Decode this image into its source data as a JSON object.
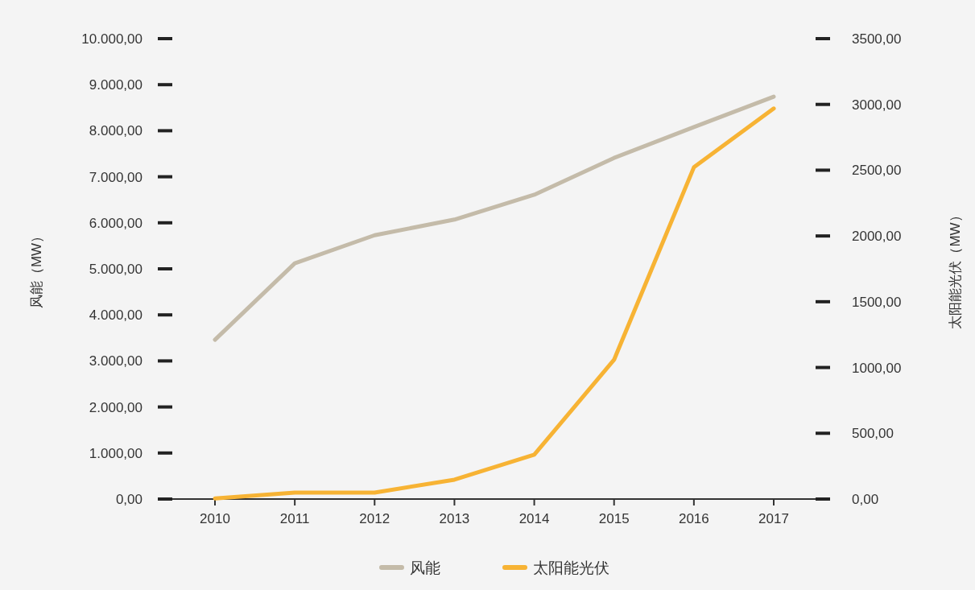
{
  "chart_data": {
    "type": "line",
    "categories": [
      "2010",
      "2011",
      "2012",
      "2013",
      "2014",
      "2015",
      "2016",
      "2017"
    ],
    "series": [
      {
        "name": "风能",
        "color": "#c4bba9",
        "values": [
          3460,
          5120,
          5730,
          6070,
          6610,
          7410,
          8080,
          8740
        ]
      },
      {
        "name": "太阳能光伏",
        "color": "#f7b334",
        "axis": "y2",
        "values": [
          5,
          49,
          49,
          147,
          337,
          1059,
          2522,
          2969
        ]
      }
    ],
    "ylabel": "风能（MW）",
    "y2label": "太阳能光伏（MW）",
    "ylim": [
      0,
      10000
    ],
    "yticks": [
      {
        "value": 0,
        "label": "0,00"
      },
      {
        "value": 1000,
        "label": "1.000,00"
      },
      {
        "value": 2000,
        "label": "2.000,00"
      },
      {
        "value": 3000,
        "label": "3.000,00"
      },
      {
        "value": 4000,
        "label": "4.000,00"
      },
      {
        "value": 5000,
        "label": "5.000,00"
      },
      {
        "value": 6000,
        "label": "6.000,00"
      },
      {
        "value": 7000,
        "label": "7.000,00"
      },
      {
        "value": 8000,
        "label": "8.000,00"
      },
      {
        "value": 9000,
        "label": "9.000,00"
      },
      {
        "value": 10000,
        "label": "10.000,00"
      }
    ],
    "y2lim": [
      0,
      3500
    ],
    "y2ticks": [
      {
        "value": 0,
        "label": "0,00"
      },
      {
        "value": 500,
        "label": "500,00"
      },
      {
        "value": 1000,
        "label": "1000,00"
      },
      {
        "value": 1500,
        "label": "1500,00"
      },
      {
        "value": 2000,
        "label": "2000,00"
      },
      {
        "value": 2500,
        "label": "2500,00"
      },
      {
        "value": 3000,
        "label": "3000,00"
      },
      {
        "value": 3500,
        "label": "3500,00"
      }
    ],
    "grid": false,
    "legend": "bottom",
    "marker": "none",
    "line_style": "solid"
  }
}
